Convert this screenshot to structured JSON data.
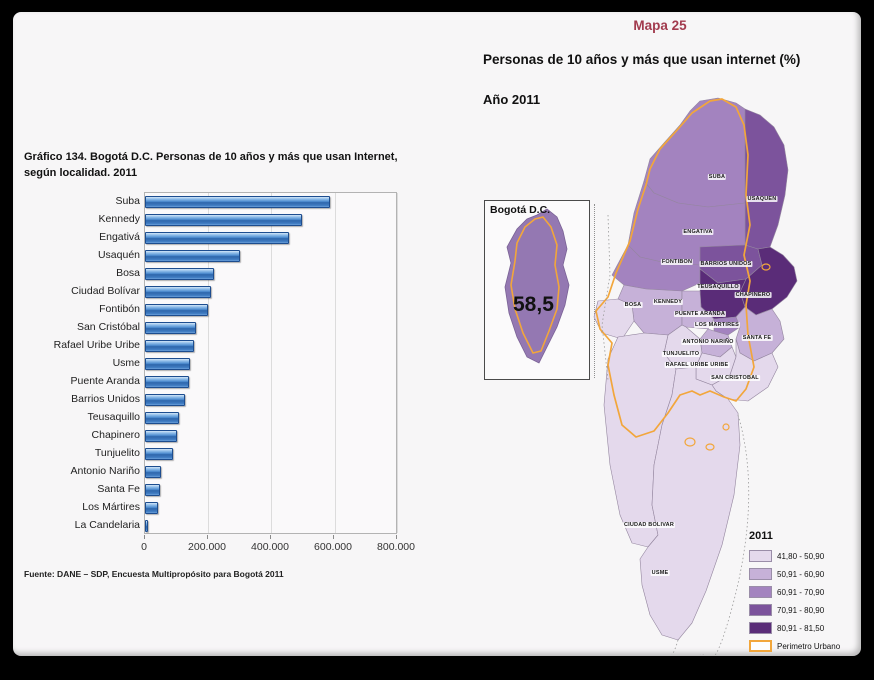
{
  "chart_panel": {
    "title": "Gráfico 134.  Bogotá D.C. Personas de 10 años y más que usan Internet, según localidad. 2011",
    "source": "Fuente: DANE – SDP, Encuesta Multipropósito para Bogotá 2011"
  },
  "chart_data": {
    "type": "bar",
    "orientation": "horizontal",
    "title": "Gráfico 134. Bogotá D.C. Personas de 10 años y más que usan Internet, según localidad. 2011",
    "categories": [
      "Suba",
      "Kennedy",
      "Engativá",
      "Usaquén",
      "Bosa",
      "Ciudad Bolívar",
      "Fontibón",
      "San Cristóbal",
      "Rafael Uribe Uribe",
      "Usme",
      "Puente Aranda",
      "Barrios Unidos",
      "Teusaquillo",
      "Chapinero",
      "Tunjuelito",
      "Antonio Nariño",
      "Santa Fe",
      "Los Mártires",
      "La Candelaria"
    ],
    "values": [
      585000,
      495000,
      455000,
      300000,
      218000,
      210000,
      200000,
      162000,
      155000,
      141000,
      138000,
      128000,
      107000,
      100000,
      88000,
      52000,
      46000,
      42000,
      10000
    ],
    "xlabel": "",
    "ylabel": "",
    "xlim": [
      0,
      800000
    ],
    "xtick_labels": [
      "0",
      "200.000",
      "400.000",
      "600.000",
      "800.000"
    ],
    "grid": true,
    "legend": "none",
    "bar_color": "#3E7FC1"
  },
  "map_panel": {
    "map_label": "Mapa 25",
    "title": "Personas de 10 años y más que usan internet (%)",
    "year": "Año 2011",
    "inset": {
      "title": "Bogotá D.C.",
      "value": "58,5"
    },
    "legend": {
      "title": "2011",
      "classes": [
        {
          "range": "41,80 - 50,90",
          "color": "#E4D9EC"
        },
        {
          "range": "50,91 - 60,90",
          "color": "#C6B1D8"
        },
        {
          "range": "60,91 - 70,90",
          "color": "#A383BF"
        },
        {
          "range": "70,91 - 80,90",
          "color": "#7C539C"
        },
        {
          "range": "80,91 - 81,50",
          "color": "#5A2C78"
        }
      ],
      "perimeter_label": "Perimetro Urbano",
      "perimeter_color": "#F2A63B"
    },
    "localities": [
      {
        "key": "suba",
        "name": "SUBA",
        "class_index": 2
      },
      {
        "key": "usaquen",
        "name": "USAQUEN",
        "class_index": 3
      },
      {
        "key": "engativa",
        "name": "ENGATIVA",
        "class_index": 2
      },
      {
        "key": "fontibon",
        "name": "FONTIBON",
        "class_index": 2
      },
      {
        "key": "barrios-unidos",
        "name": "BARRIOS UNIDOS",
        "class_index": 3
      },
      {
        "key": "teusaquillo",
        "name": "TEUSAQUILLO",
        "class_index": 4
      },
      {
        "key": "chapinero",
        "name": "CHAPINERO",
        "class_index": 4
      },
      {
        "key": "kennedy",
        "name": "KENNEDY",
        "class_index": 1
      },
      {
        "key": "bosa",
        "name": "BOSA",
        "class_index": 0
      },
      {
        "key": "puente-aranda",
        "name": "PUENTE ARANDA",
        "class_index": 1
      },
      {
        "key": "los-martires",
        "name": "LOS MARTIRES",
        "class_index": 2
      },
      {
        "key": "santa-fe",
        "name": "SANTA FE",
        "class_index": 1
      },
      {
        "key": "antonio-narino",
        "name": "ANTONIO NARIÑO",
        "class_index": 1
      },
      {
        "key": "tunjuelito",
        "name": "TUNJUELITO",
        "class_index": 0
      },
      {
        "key": "rafael-uribe-uribe",
        "name": "RAFAEL URIBE URIBE",
        "class_index": 0
      },
      {
        "key": "san-cristobal",
        "name": "SAN CRISTOBAL",
        "class_index": 0
      },
      {
        "key": "ciudad-bolivar",
        "name": "CIUDAD BOLIVAR",
        "class_index": 0
      },
      {
        "key": "usme",
        "name": "USME",
        "class_index": 0
      }
    ]
  }
}
